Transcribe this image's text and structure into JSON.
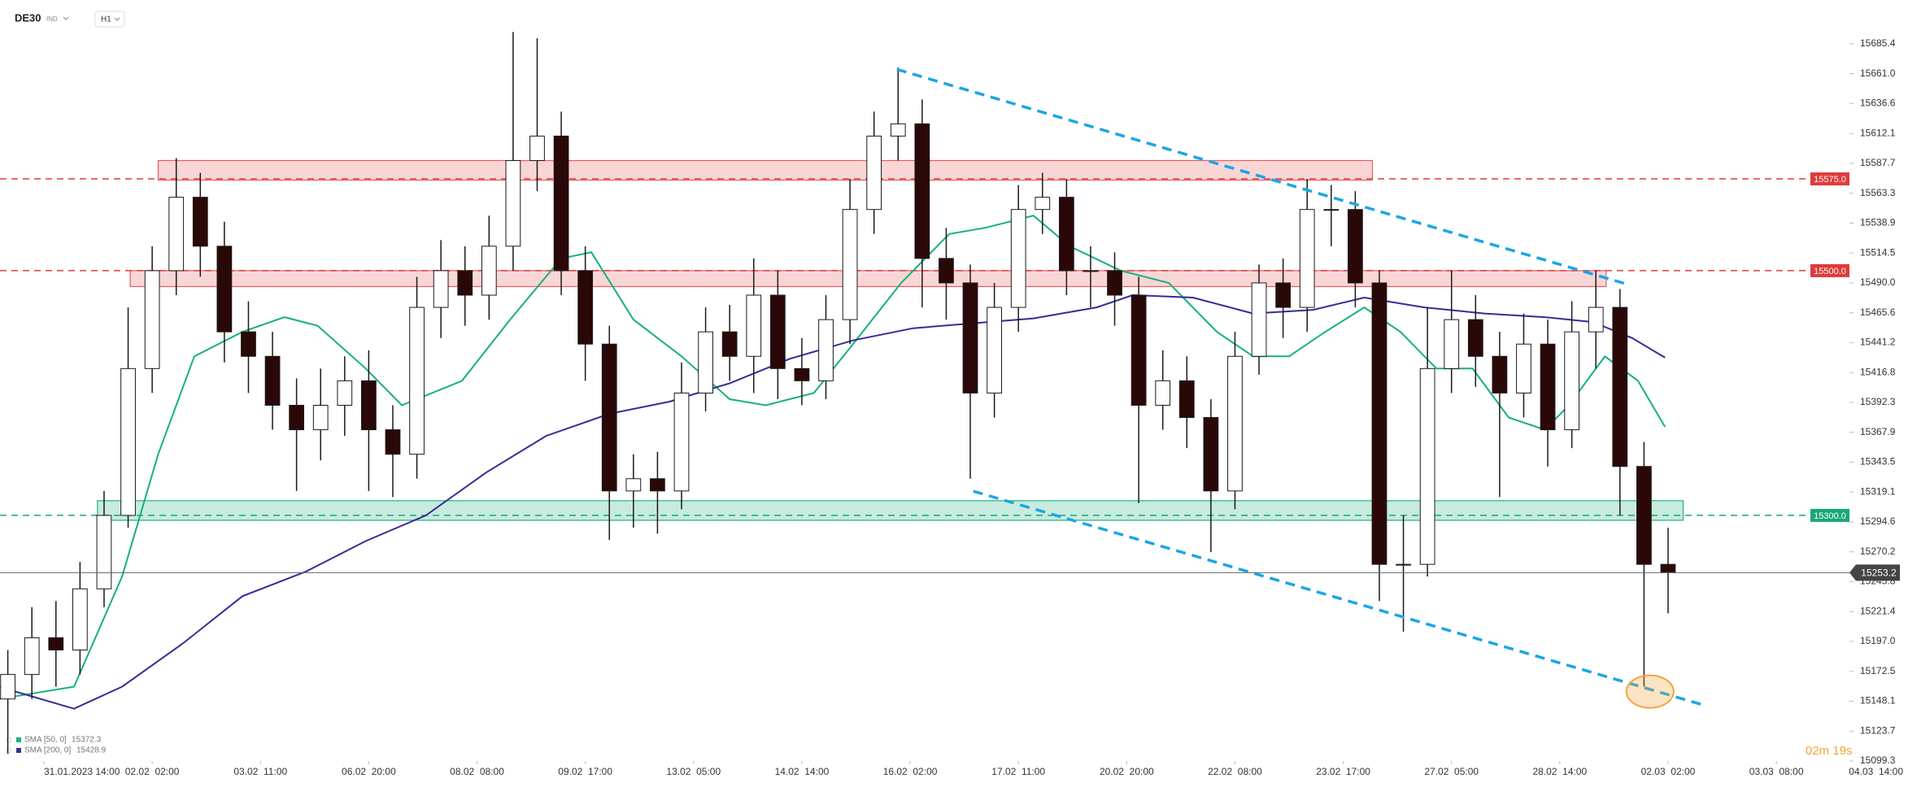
{
  "chart_data": {
    "type": "candlestick",
    "symbol": "DE30",
    "market": "IND",
    "interval": "H1",
    "countdown": "02m 19s",
    "up_color": "#ffffff",
    "down_color": "#2b0808",
    "wick_color": "#1a1a1a",
    "x": [
      -12,
      -4,
      4,
      12,
      20,
      28,
      36,
      44,
      52,
      60,
      68,
      76,
      84,
      92,
      100,
      108,
      116,
      124,
      132,
      140,
      148,
      156,
      164,
      172,
      180,
      188,
      196,
      204,
      212,
      220,
      228,
      236,
      244,
      252,
      260,
      268,
      276,
      284,
      292,
      300,
      308,
      316,
      324,
      332,
      340,
      348,
      356,
      364,
      372,
      380,
      388,
      396,
      404,
      412,
      420,
      428,
      436,
      444,
      452,
      460,
      468,
      476,
      484,
      492,
      500,
      508,
      516,
      524,
      532,
      540
    ],
    "open": [
      15150,
      15170,
      15200,
      15190,
      15240,
      15300,
      15420,
      15500,
      15560,
      15520,
      15450,
      15430,
      15390,
      15370,
      15390,
      15410,
      15370,
      15350,
      15470,
      15500,
      15480,
      15520,
      15590,
      15610,
      15500,
      15440,
      15320,
      15330,
      15320,
      15400,
      15450,
      15430,
      15480,
      15420,
      15410,
      15460,
      15550,
      15610,
      15620,
      15510,
      15490,
      15400,
      15470,
      15550,
      15560,
      15500,
      15500,
      15480,
      15390,
      15410,
      15380,
      15320,
      15430,
      15490,
      15470,
      15550,
      15550,
      15490,
      15260,
      15260,
      15420,
      15460,
      15430,
      15400,
      15440,
      15370,
      15450,
      15470,
      15340,
      15260
    ],
    "high": [
      15190,
      15225,
      15230,
      15262,
      15320,
      15470,
      15520,
      15592,
      15580,
      15540,
      15475,
      15450,
      15412,
      15420,
      15430,
      15435,
      15390,
      15495,
      15525,
      15520,
      15545,
      15695,
      15690,
      15630,
      15520,
      15455,
      15350,
      15352,
      15425,
      15470,
      15472,
      15510,
      15500,
      15445,
      15480,
      15575,
      15630,
      15666,
      15640,
      15535,
      15505,
      15490,
      15570,
      15580,
      15575,
      15520,
      15515,
      15495,
      15435,
      15430,
      15395,
      15450,
      15505,
      15510,
      15575,
      15570,
      15565,
      15500,
      15300,
      15470,
      15500,
      15480,
      15450,
      15465,
      15460,
      15475,
      15500,
      15485,
      15360,
      15290
    ],
    "low": [
      15105,
      15150,
      15160,
      15170,
      15225,
      15290,
      15400,
      15480,
      15495,
      15425,
      15400,
      15370,
      15320,
      15345,
      15365,
      15320,
      15315,
      15330,
      15445,
      15455,
      15460,
      15500,
      15565,
      15480,
      15410,
      15280,
      15290,
      15285,
      15305,
      15385,
      15410,
      15400,
      15395,
      15390,
      15395,
      15440,
      15530,
      15590,
      15470,
      15460,
      15330,
      15380,
      15450,
      15530,
      15480,
      15470,
      15455,
      15310,
      15370,
      15355,
      15270,
      15305,
      15415,
      15445,
      15450,
      15520,
      15470,
      15230,
      15205,
      15250,
      15400,
      15405,
      15315,
      15380,
      15340,
      15355,
      15420,
      15300,
      15160,
      15220
    ],
    "close": [
      15170,
      15200,
      15190,
      15240,
      15300,
      15420,
      15500,
      15560,
      15520,
      15450,
      15430,
      15390,
      15370,
      15390,
      15410,
      15370,
      15350,
      15470,
      15500,
      15480,
      15520,
      15590,
      15610,
      15500,
      15440,
      15320,
      15330,
      15320,
      15400,
      15450,
      15430,
      15480,
      15420,
      15410,
      15460,
      15550,
      15610,
      15620,
      15510,
      15490,
      15400,
      15470,
      15550,
      15560,
      15500,
      15500,
      15480,
      15390,
      15410,
      15380,
      15320,
      15430,
      15490,
      15470,
      15550,
      15550,
      15490,
      15260,
      15260,
      15420,
      15460,
      15430,
      15400,
      15440,
      15370,
      15450,
      15470,
      15340,
      15260,
      15253.2
    ],
    "indicators": [
      {
        "name": "SMA [50, 0]",
        "last_value": 15372.3,
        "color": "#17b07f",
        "x": [
          -15,
          10,
          26,
          38,
          50,
          66,
          80,
          91,
          107,
          119,
          139,
          155,
          172,
          182,
          196,
          212,
          228,
          240,
          256,
          269,
          285,
          301,
          313,
          329,
          341,
          358,
          374,
          390,
          402,
          414,
          426,
          439,
          451,
          463,
          475,
          487,
          499,
          507,
          519,
          530,
          539
        ],
        "values": [
          15150,
          15160,
          15250,
          15350,
          15430,
          15450,
          15462,
          15455,
          15420,
          15390,
          15410,
          15460,
          15510,
          15515,
          15460,
          15430,
          15395,
          15390,
          15400,
          15440,
          15490,
          15530,
          15535,
          15545,
          15520,
          15500,
          15490,
          15450,
          15430,
          15430,
          15450,
          15470,
          15450,
          15420,
          15420,
          15380,
          15370,
          15390,
          15430,
          15410,
          15372.3
        ]
      },
      {
        "name": "SMA [200, 0]",
        "last_value": 15428.9,
        "color": "#3a2a96",
        "x": [
          -15,
          10,
          26,
          46,
          66,
          87,
          107,
          127,
          147,
          167,
          188,
          208,
          228,
          248,
          269,
          289,
          309,
          329,
          350,
          362,
          382,
          402,
          422,
          439,
          459,
          479,
          499,
          515,
          528,
          539
        ],
        "values": [
          15160,
          15142,
          15160,
          15195,
          15234,
          15254,
          15279,
          15300,
          15335,
          15365,
          15383,
          15393,
          15408,
          15428,
          15443,
          15453,
          15457,
          15461,
          15470,
          15480,
          15478,
          15465,
          15468,
          15478,
          15470,
          15465,
          15462,
          15458,
          15445,
          15428.9
        ]
      }
    ],
    "levels": [
      {
        "value": 15575,
        "label": "15575.0",
        "color": "#e03a3a"
      },
      {
        "value": 15500,
        "label": "15500.0",
        "color": "#e03a3a"
      },
      {
        "value": 15300,
        "label": "15300.0",
        "color": "#19a877"
      }
    ],
    "zones": [
      {
        "x": [
          38,
          441.7
        ],
        "y": [
          15574,
          15590
        ],
        "color": "#e85c5c"
      },
      {
        "x": [
          28.7,
          519.4
        ],
        "y": [
          15487,
          15500
        ],
        "color": "#e85c5c"
      },
      {
        "x": [
          17.8,
          545
        ],
        "y": [
          15296,
          15312
        ],
        "color": "#22b07f"
      }
    ],
    "trendlines": [
      {
        "x": [
          283.6,
          526.7
        ],
        "y": [
          15664.5,
          15488.7
        ],
        "color": "#1ba6e4"
      },
      {
        "x": [
          309,
          551.8
        ],
        "y": [
          15319.8,
          15145
        ],
        "color": "#1ba6e4"
      }
    ],
    "highlight": {
      "x": 534,
      "y": 15156,
      "color": "#f3a43a"
    },
    "last_price": 15253.2,
    "xlim": [
      -14.6,
      600.3
    ],
    "xticks": [
      {
        "value": 0,
        "label": "31.01.2023 14:00"
      },
      {
        "value": 36,
        "label": "02.02  02:00"
      },
      {
        "value": 72,
        "label": "03.02  11:00"
      },
      {
        "value": 108,
        "label": "06.02  20:00"
      },
      {
        "value": 144,
        "label": "08.02  08:00"
      },
      {
        "value": 180,
        "label": "09.02  17:00"
      },
      {
        "value": 216,
        "label": "13.02  05:00"
      },
      {
        "value": 252,
        "label": "14.02  14:00"
      },
      {
        "value": 288,
        "label": "16.02  02:00"
      },
      {
        "value": 324,
        "label": "17.02  11:00"
      },
      {
        "value": 360,
        "label": "20.02  20:00"
      },
      {
        "value": 396,
        "label": "22.02  08:00"
      },
      {
        "value": 432,
        "label": "23.02  17:00"
      },
      {
        "value": 468,
        "label": "27.02  05:00"
      },
      {
        "value": 504,
        "label": "28.02  14:00"
      },
      {
        "value": 540,
        "label": "02.03  02:00"
      },
      {
        "value": 576,
        "label": "03.03  08:00"
      },
      {
        "value": 612,
        "label": "04.03  14:00"
      }
    ],
    "ylim": [
      15099.3,
      15721.2
    ],
    "yticks": [
      15685.4,
      {
        "value": 15661,
        "label": "15661.0"
      },
      15636.6,
      15612.1,
      15587.7,
      15563.3,
      15538.9,
      15514.5,
      {
        "value": 15490,
        "label": "15490.0"
      },
      15465.6,
      15441.2,
      15416.8,
      15392.3,
      15367.9,
      15343.5,
      15319.1,
      15294.6,
      15270.2,
      15245.8,
      15221.4,
      {
        "value": 15197,
        "label": "15197.0"
      },
      15172.5,
      15148.1,
      15123.7,
      15099.3
    ]
  }
}
